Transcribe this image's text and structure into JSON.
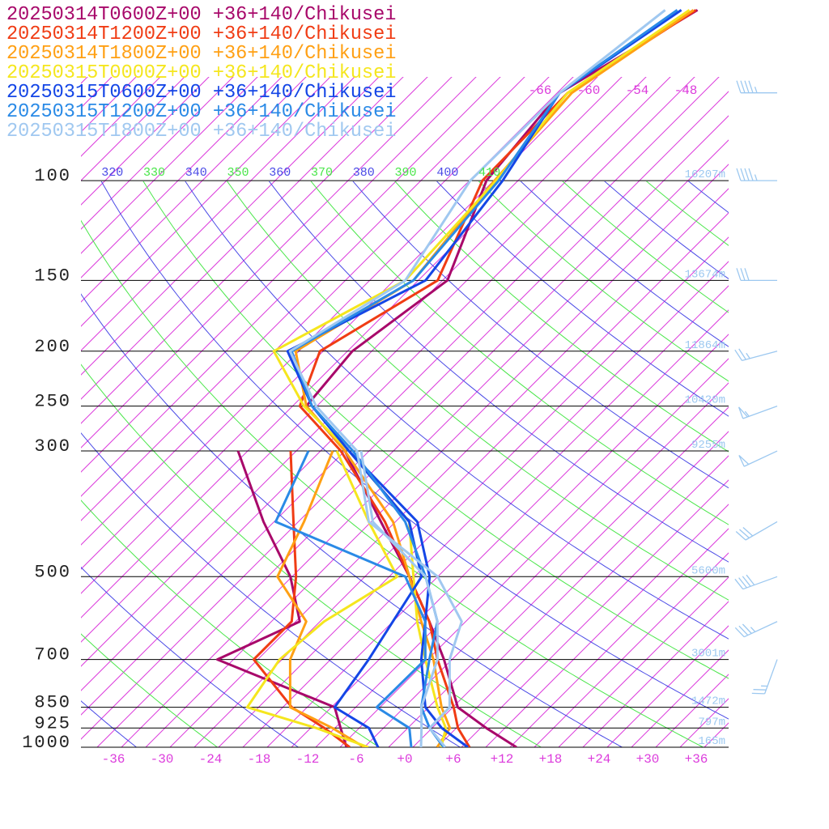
{
  "chart_data": {
    "type": "skewt",
    "pressure_levels": [
      1000,
      925,
      850,
      700,
      600,
      500,
      400,
      300,
      250,
      200,
      150,
      100,
      70,
      50
    ],
    "series": [
      {
        "name": "20250314T0600Z+00 +36+140/Chikusei",
        "color": "#a8086a",
        "temperature": [
          13.8,
          7.7,
          1.6,
          -6,
          -12.5,
          -20.5,
          -30.8,
          -44,
          -54.3,
          -55.4,
          -52.4,
          -59.9,
          -61.7,
          -54.9
        ],
        "dewpoint": [
          -7.2,
          -10.3,
          -13.6,
          -34,
          -28.5,
          -35.2,
          -45.3,
          -57.2,
          null,
          null,
          null,
          null,
          null,
          null
        ]
      },
      {
        "name": "20250314T1200Z+00 +36+140/Chikusei",
        "color": "#f03c14",
        "temperature": [
          8,
          4.2,
          1.1,
          -6.8,
          -12.5,
          -20.5,
          -30.3,
          -44.5,
          -55.1,
          -59.4,
          -53.6,
          -60.4,
          -60.7,
          -55.1
        ],
        "dewpoint": [
          -6.8,
          -12.3,
          -18.9,
          -29.5,
          -29.5,
          -34.5,
          -41.6,
          -50.7,
          null,
          null,
          null,
          null,
          null,
          null
        ]
      },
      {
        "name": "20250314T1800Z+00 +36+140/Chikusei",
        "color": "#ffa014",
        "temperature": [
          4,
          3.2,
          -0.4,
          -7.3,
          -13.5,
          -20.5,
          -29.3,
          -44,
          -54.3,
          -62.4,
          -56.6,
          -58.9,
          -60.2,
          -55.4
        ],
        "dewpoint": [
          -5,
          -11.3,
          -19.1,
          -25,
          -27.7,
          -36.8,
          -40.3,
          -45.5,
          null,
          null,
          null,
          null,
          null,
          null
        ]
      },
      {
        "name": "20250315T0000Z+00 +36+140/Chikusei",
        "color": "#f5e61e",
        "temperature": [
          4.5,
          2.7,
          -0.9,
          -8.3,
          -14,
          -20,
          -27.3,
          -43.5,
          -54.6,
          -65.1,
          -57.6,
          -58.7,
          -60.7,
          -55.9
        ],
        "dewpoint": [
          -4.5,
          -13.3,
          -24.4,
          -26.3,
          -25.5,
          -22,
          -32.3,
          -45,
          null,
          null,
          null,
          null,
          null,
          null
        ]
      },
      {
        "name": "20250315T0600Z+00 +36+140/Chikusei",
        "color": "#1446e6",
        "temperature": [
          7.8,
          2.2,
          -2.4,
          -8.8,
          -13,
          -18,
          -26.3,
          -43.5,
          -53.6,
          -63.4,
          -55.1,
          -57.9,
          -61.7,
          -56.9
        ],
        "dewpoint": [
          -3.3,
          -6.8,
          -13.6,
          -15.3,
          -17,
          -19,
          -27.3,
          -43.5,
          null,
          null,
          null,
          null,
          null,
          null
        ]
      },
      {
        "name": "20250315T1200Z+00 +36+140/Chikusei",
        "color": "#2a8ae6",
        "temperature": [
          4.8,
          0.7,
          -2.9,
          -7.8,
          -11.5,
          -18.5,
          -27.8,
          -43,
          -53.6,
          -62.9,
          -56.6,
          -58.4,
          -61.7,
          -57.4
        ],
        "dewpoint": [
          0.8,
          -1.8,
          -8.4,
          -8.3,
          -13,
          -21,
          -43.8,
          -48.5,
          null,
          null,
          null,
          null,
          null,
          null
        ]
      },
      {
        "name": "20250315T1800Z+00 +36+140/Chikusei",
        "color": "#a0c8f0",
        "temperature": [
          5,
          0.7,
          0.6,
          -5.3,
          -8.5,
          -17,
          -32.3,
          -42.5,
          -53.1,
          -63.1,
          -57.6,
          -61.9,
          -61.7,
          -58.9
        ],
        "dewpoint": [
          2,
          -0.3,
          -2.9,
          -6.8,
          -11.5,
          -18.5,
          -31.8,
          -42,
          null,
          null,
          null,
          null,
          null,
          null
        ]
      }
    ],
    "ylim": [
      1000,
      48
    ],
    "yticks": [
      1000,
      925,
      850,
      700,
      500,
      300,
      250,
      200,
      150,
      100
    ],
    "xlim": [
      -40,
      40
    ],
    "xticks": [
      -36,
      -30,
      -24,
      -18,
      -12,
      -6,
      {
        "value": 0,
        "label": "+0"
      },
      {
        "value": 6,
        "label": "+6"
      },
      {
        "value": 12,
        "label": "+12"
      },
      {
        "value": 18,
        "label": "+18"
      },
      {
        "value": 24,
        "label": "+24"
      },
      {
        "value": 30,
        "label": "+30"
      },
      {
        "value": 36,
        "label": "+36"
      }
    ],
    "isotherm_labels": [
      -66,
      -60,
      -54,
      -48
    ],
    "isentrope_labels": [
      320,
      330,
      340,
      350,
      360,
      370,
      380,
      390,
      400,
      410
    ],
    "isentrope_colors": [
      "#4a4ae6",
      "#4ae64a"
    ],
    "isotherm_color": "#dc3cdc",
    "height_labels": [
      {
        "pressure": 100,
        "label": "16207m"
      },
      {
        "pressure": 150,
        "label": "13674m"
      },
      {
        "pressure": 200,
        "label": "11864m"
      },
      {
        "pressure": 250,
        "label": "10420m"
      },
      {
        "pressure": 300,
        "label": "9255m"
      },
      {
        "pressure": 500,
        "label": "5600m"
      },
      {
        "pressure": 700,
        "label": "3001m"
      },
      {
        "pressure": 850,
        "label": "1472m"
      },
      {
        "pressure": 925,
        "label": "797m"
      },
      {
        "pressure": 1000,
        "label": "165m"
      }
    ],
    "winds": {
      "color": "#9cc8f0",
      "pressure": [
        70,
        100,
        150,
        200,
        250,
        300,
        400,
        500,
        600,
        700
      ],
      "direction": [
        270,
        270,
        270,
        255,
        250,
        245,
        240,
        250,
        245,
        200
      ],
      "speed": [
        45,
        45,
        30,
        25,
        55,
        50,
        30,
        40,
        35,
        25
      ]
    }
  }
}
